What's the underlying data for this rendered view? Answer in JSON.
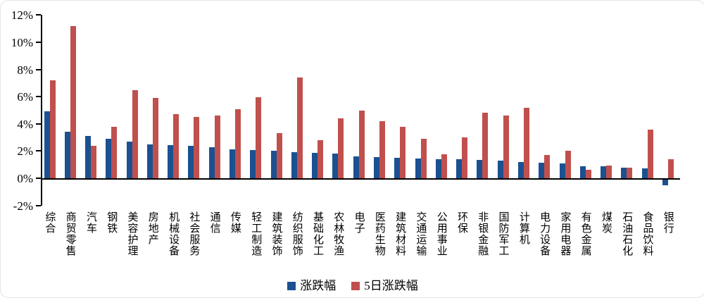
{
  "chart_data": {
    "type": "bar",
    "title": "",
    "xlabel": "",
    "ylabel": "",
    "ylim": [
      -2,
      12
    ],
    "ytick_step": 2,
    "ytick_labels": [
      "12%",
      "10%",
      "8%",
      "6%",
      "4%",
      "2%",
      "0%",
      "-2%"
    ],
    "grid": false,
    "legend_position": "bottom",
    "categories": [
      "综合",
      "商贸零售",
      "汽车",
      "钢铁",
      "美容护理",
      "房地产",
      "机械设备",
      "社会服务",
      "通信",
      "传媒",
      "轻工制造",
      "建筑装饰",
      "纺织服饰",
      "基础化工",
      "农林牧渔",
      "电子",
      "医药生物",
      "建筑材料",
      "交通运输",
      "公用事业",
      "环保",
      "非银金融",
      "国防军工",
      "计算机",
      "电力设备",
      "家用电器",
      "有色金属",
      "煤炭",
      "石油石化",
      "食品饮料",
      "银行"
    ],
    "series": [
      {
        "name": "涨跌幅",
        "color": "#1B5191",
        "values": [
          4.9,
          3.4,
          3.1,
          2.9,
          2.7,
          2.5,
          2.45,
          2.4,
          2.3,
          2.15,
          2.05,
          2.0,
          1.9,
          1.85,
          1.8,
          1.6,
          1.55,
          1.5,
          1.45,
          1.4,
          1.4,
          1.35,
          1.3,
          1.2,
          1.15,
          1.1,
          0.9,
          0.9,
          0.8,
          0.7,
          -0.4
        ]
      },
      {
        "name": "5日涨跌幅",
        "color": "#C0504D",
        "values": [
          7.2,
          11.2,
          2.4,
          3.8,
          6.5,
          5.9,
          4.7,
          4.5,
          4.6,
          5.1,
          5.95,
          3.3,
          7.4,
          2.8,
          4.4,
          5.0,
          4.2,
          3.8,
          2.9,
          1.75,
          3.0,
          4.8,
          4.6,
          5.2,
          1.7,
          2.0,
          0.6,
          0.95,
          0.8,
          3.6,
          1.4
        ]
      }
    ]
  },
  "legend": {
    "items": [
      {
        "label": "涨跌幅",
        "color": "#1B5191"
      },
      {
        "label": "5日涨跌幅",
        "color": "#C0504D"
      }
    ]
  }
}
